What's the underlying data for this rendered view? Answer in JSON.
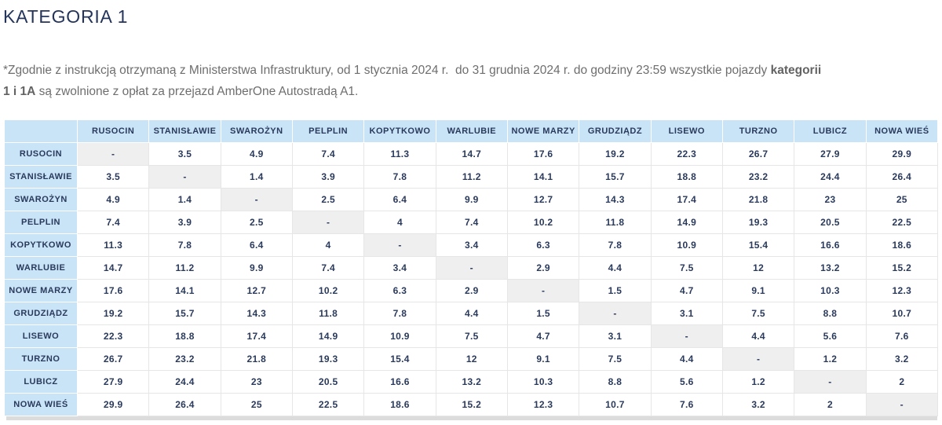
{
  "page": {
    "title": "KATEGORIA 1"
  },
  "intro": {
    "text_1": "*Zgodnie z instrukcją otrzymaną z Ministerstwa Infrastruktury, od 1 stycznia 2024 r.  do 31 grudnia 2024 r. do godziny 23:59 wszystkie pojazdy ",
    "bold_1": "kategorii",
    "bold_2": "1 i 1A",
    "text_2": " są zwolnione z opłat za przejazd AmberOne Autostradą A1."
  },
  "colors": {
    "title_navy": "#24345a",
    "table_text_navy": "#2a3a5c",
    "header_blue": "#c9e4f7",
    "diagonal_gray": "#efefef",
    "border_gray": "#e6e6e6",
    "body_text_gray": "#6e6e6e",
    "bottom_strip_gray": "#dcdcdc"
  },
  "chart_data": {
    "type": "table",
    "title": "KATEGORIA 1",
    "columns": [
      "RUSOCIN",
      "STANISŁAWIE",
      "SWAROŻYN",
      "PELPLIN",
      "KOPYTKOWO",
      "WARLUBIE",
      "NOWE MARZY",
      "GRUDZIĄDZ",
      "LISEWO",
      "TURZNO",
      "LUBICZ",
      "NOWA WIEŚ"
    ],
    "rows": [
      {
        "label": "RUSOCIN",
        "values": [
          "-",
          "3.5",
          "4.9",
          "7.4",
          "11.3",
          "14.7",
          "17.6",
          "19.2",
          "22.3",
          "26.7",
          "27.9",
          "29.9"
        ]
      },
      {
        "label": "STANISŁAWIE",
        "values": [
          "3.5",
          "-",
          "1.4",
          "3.9",
          "7.8",
          "11.2",
          "14.1",
          "15.7",
          "18.8",
          "23.2",
          "24.4",
          "26.4"
        ]
      },
      {
        "label": "SWAROŻYN",
        "values": [
          "4.9",
          "1.4",
          "-",
          "2.5",
          "6.4",
          "9.9",
          "12.7",
          "14.3",
          "17.4",
          "21.8",
          "23",
          "25"
        ]
      },
      {
        "label": "PELPLIN",
        "values": [
          "7.4",
          "3.9",
          "2.5",
          "-",
          "4",
          "7.4",
          "10.2",
          "11.8",
          "14.9",
          "19.3",
          "20.5",
          "22.5"
        ]
      },
      {
        "label": "KOPYTKOWO",
        "values": [
          "11.3",
          "7.8",
          "6.4",
          "4",
          "-",
          "3.4",
          "6.3",
          "7.8",
          "10.9",
          "15.4",
          "16.6",
          "18.6"
        ]
      },
      {
        "label": "WARLUBIE",
        "values": [
          "14.7",
          "11.2",
          "9.9",
          "7.4",
          "3.4",
          "-",
          "2.9",
          "4.4",
          "7.5",
          "12",
          "13.2",
          "15.2"
        ]
      },
      {
        "label": "NOWE MARZY",
        "values": [
          "17.6",
          "14.1",
          "12.7",
          "10.2",
          "6.3",
          "2.9",
          "-",
          "1.5",
          "4.7",
          "9.1",
          "10.3",
          "12.3"
        ]
      },
      {
        "label": "GRUDZIĄDZ",
        "values": [
          "19.2",
          "15.7",
          "14.3",
          "11.8",
          "7.8",
          "4.4",
          "1.5",
          "-",
          "3.1",
          "7.5",
          "8.8",
          "10.7"
        ]
      },
      {
        "label": "LISEWO",
        "values": [
          "22.3",
          "18.8",
          "17.4",
          "14.9",
          "10.9",
          "7.5",
          "4.7",
          "3.1",
          "-",
          "4.4",
          "5.6",
          "7.6"
        ]
      },
      {
        "label": "TURZNO",
        "values": [
          "26.7",
          "23.2",
          "21.8",
          "19.3",
          "15.4",
          "12",
          "9.1",
          "7.5",
          "4.4",
          "-",
          "1.2",
          "3.2"
        ]
      },
      {
        "label": "LUBICZ",
        "values": [
          "27.9",
          "24.4",
          "23",
          "20.5",
          "16.6",
          "13.2",
          "10.3",
          "8.8",
          "5.6",
          "1.2",
          "-",
          "2"
        ]
      },
      {
        "label": "NOWA WIEŚ",
        "values": [
          "29.9",
          "26.4",
          "25",
          "22.5",
          "18.6",
          "15.2",
          "12.3",
          "10.7",
          "7.6",
          "3.2",
          "2",
          "-"
        ]
      }
    ]
  }
}
